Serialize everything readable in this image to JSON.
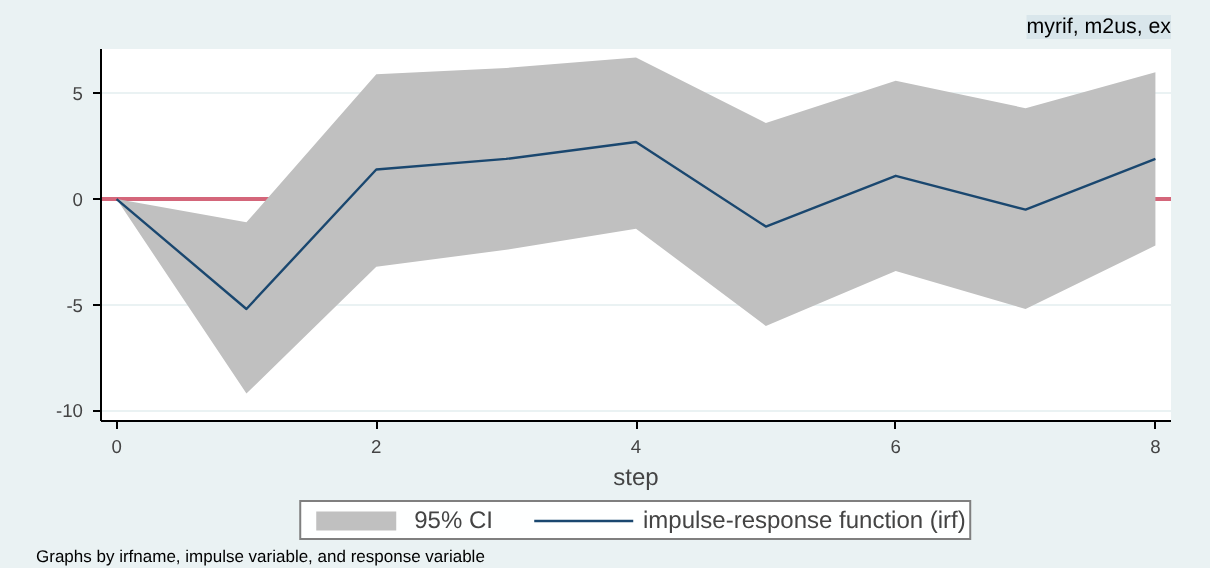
{
  "chart_data": {
    "type": "line",
    "title": "myrif, m2us, ex",
    "xlabel": "step",
    "x": [
      0,
      1,
      2,
      3,
      4,
      5,
      6,
      7,
      8
    ],
    "series": [
      {
        "name": "95% CI",
        "type": "area",
        "color": "#c0c0c0",
        "values": [
          null,
          null,
          null,
          null,
          null,
          null,
          null,
          null,
          null
        ],
        "lower": [
          0,
          -9.2,
          -3.2,
          -2.4,
          -1.4,
          -6,
          -3.4,
          -5.2,
          -2.2
        ],
        "upper": [
          0,
          -1.1,
          5.9,
          6.2,
          6.7,
          3.6,
          5.6,
          4.3,
          6.0
        ]
      },
      {
        "name": "impulse-response function (irf)",
        "color": "#1a476f",
        "values": [
          0,
          -5.2,
          1.4,
          1.9,
          2.7,
          -1.3,
          1.1,
          -0.5,
          1.9
        ]
      }
    ],
    "xlim": [
      -0.12,
      8.12
    ],
    "ylim": [
      -10.5,
      7.1
    ],
    "xticks": [
      0,
      2,
      4,
      6,
      8
    ],
    "yticks": [
      -10,
      -5,
      0,
      5
    ],
    "ref_lines": [
      {
        "axis": "y",
        "value": 0,
        "color": "#d4667a"
      }
    ],
    "grid": "y",
    "legend": "bottom",
    "line_style": "solid",
    "annotations": [
      "Graphs by irfname, impulse variable, and response variable"
    ]
  }
}
